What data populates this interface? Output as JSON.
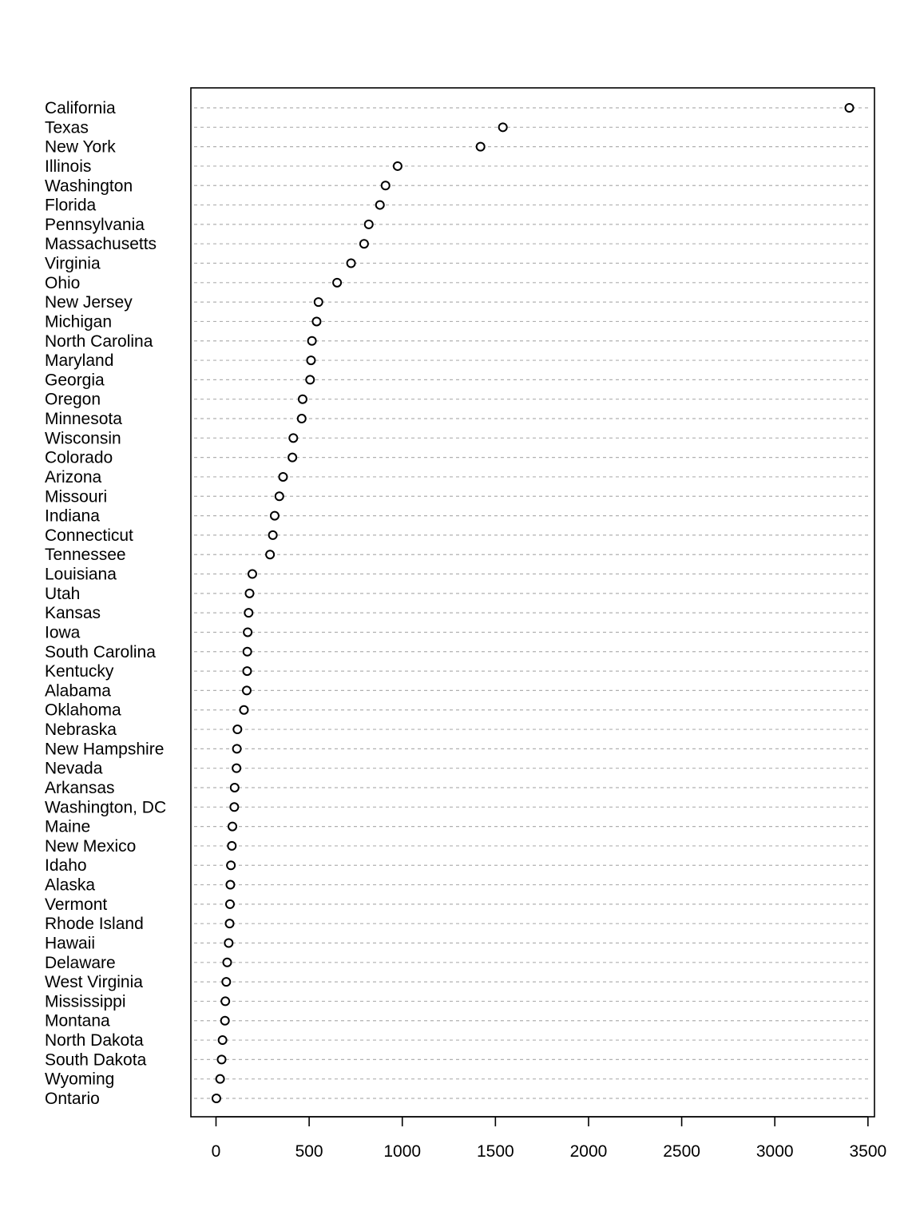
{
  "chart_data": {
    "type": "scatter",
    "subtype": "dot-chart",
    "title": "",
    "xlabel": "",
    "ylabel": "",
    "xlim": [
      -135,
      3535
    ],
    "x_ticks": [
      0,
      500,
      1000,
      1500,
      2000,
      2500,
      3000,
      3500
    ],
    "grid": "horizontal dashed lines at each category",
    "marker": "open circle",
    "points": [
      {
        "label": "California",
        "value": 3400
      },
      {
        "label": "Texas",
        "value": 1540
      },
      {
        "label": "New York",
        "value": 1420
      },
      {
        "label": "Illinois",
        "value": 975
      },
      {
        "label": "Washington",
        "value": 910
      },
      {
        "label": "Florida",
        "value": 880
      },
      {
        "label": "Pennsylvania",
        "value": 820
      },
      {
        "label": "Massachusetts",
        "value": 795
      },
      {
        "label": "Virginia",
        "value": 725
      },
      {
        "label": "Ohio",
        "value": 650
      },
      {
        "label": "New Jersey",
        "value": 550
      },
      {
        "label": "Michigan",
        "value": 540
      },
      {
        "label": "North Carolina",
        "value": 515
      },
      {
        "label": "Maryland",
        "value": 510
      },
      {
        "label": "Georgia",
        "value": 505
      },
      {
        "label": "Oregon",
        "value": 465
      },
      {
        "label": "Minnesota",
        "value": 460
      },
      {
        "label": "Wisconsin",
        "value": 415
      },
      {
        "label": "Colorado",
        "value": 410
      },
      {
        "label": "Arizona",
        "value": 360
      },
      {
        "label": "Missouri",
        "value": 340
      },
      {
        "label": "Indiana",
        "value": 315
      },
      {
        "label": "Connecticut",
        "value": 305
      },
      {
        "label": "Tennessee",
        "value": 290
      },
      {
        "label": "Louisiana",
        "value": 195
      },
      {
        "label": "Utah",
        "value": 180
      },
      {
        "label": "Kansas",
        "value": 175
      },
      {
        "label": "Iowa",
        "value": 170
      },
      {
        "label": "South Carolina",
        "value": 168
      },
      {
        "label": "Kentucky",
        "value": 167
      },
      {
        "label": "Alabama",
        "value": 165
      },
      {
        "label": "Oklahoma",
        "value": 150
      },
      {
        "label": "Nebraska",
        "value": 115
      },
      {
        "label": "New Hampshire",
        "value": 112
      },
      {
        "label": "Nevada",
        "value": 110
      },
      {
        "label": "Arkansas",
        "value": 100
      },
      {
        "label": "Washington, DC",
        "value": 98
      },
      {
        "label": "Maine",
        "value": 88
      },
      {
        "label": "New Mexico",
        "value": 85
      },
      {
        "label": "Idaho",
        "value": 80
      },
      {
        "label": "Alaska",
        "value": 77
      },
      {
        "label": "Vermont",
        "value": 75
      },
      {
        "label": "Rhode Island",
        "value": 73
      },
      {
        "label": "Hawaii",
        "value": 68
      },
      {
        "label": "Delaware",
        "value": 60
      },
      {
        "label": "West Virginia",
        "value": 55
      },
      {
        "label": "Mississippi",
        "value": 50
      },
      {
        "label": "Montana",
        "value": 48
      },
      {
        "label": "North Dakota",
        "value": 35
      },
      {
        "label": "South Dakota",
        "value": 30
      },
      {
        "label": "Wyoming",
        "value": 22
      },
      {
        "label": "Ontario",
        "value": 2
      }
    ]
  }
}
